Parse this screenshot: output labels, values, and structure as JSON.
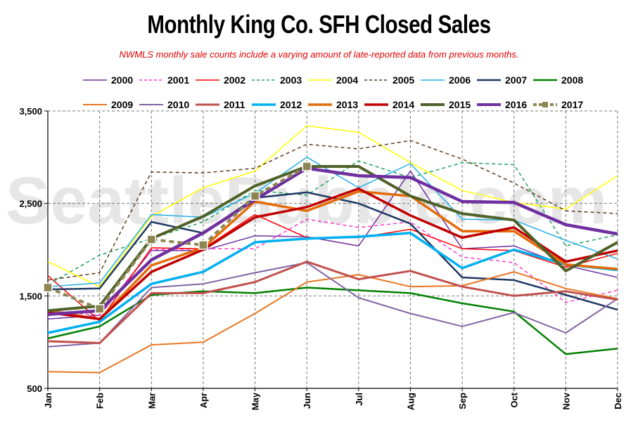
{
  "title": "Monthly King Co. SFH Closed Sales",
  "subtitle": "NWMLS monthly sale counts include a varying amount of late-reported  data  from previous months.",
  "watermark": "SeattleBubble.com",
  "chart_data": {
    "type": "line",
    "title": "Monthly King Co. SFH Closed Sales",
    "xlabel": "",
    "ylabel": "",
    "categories": [
      "Jan",
      "Feb",
      "Mar",
      "Apr",
      "May",
      "Jun",
      "Jul",
      "Aug",
      "Sep",
      "Oct",
      "Nov",
      "Dec"
    ],
    "ylim": [
      500,
      3500
    ],
    "yticks": [
      500,
      1500,
      2500,
      3500
    ],
    "ytick_labels": [
      "500",
      "1,500",
      "2,500",
      "3,500"
    ],
    "grid": "dashed",
    "legend": "top",
    "series": [
      {
        "name": "2000",
        "color": "#7030a0",
        "dash": "solid",
        "width": 1.5,
        "values": [
          1250,
          1290,
          1990,
          1990,
          2150,
          2140,
          2040,
          2850,
          2010,
          2040,
          1830,
          1700
        ]
      },
      {
        "name": "2001",
        "color": "#ff33cc",
        "dash": "dashed",
        "width": 1.5,
        "values": [
          1340,
          1290,
          2000,
          2010,
          2010,
          2330,
          2240,
          2300,
          1920,
          1860,
          1430,
          1560
        ]
      },
      {
        "name": "2002",
        "color": "#ff0000",
        "dash": "solid",
        "width": 1.5,
        "values": [
          1720,
          1230,
          2020,
          2010,
          2380,
          2130,
          2130,
          2220,
          2010,
          1990,
          1810,
          1960
        ]
      },
      {
        "name": "2003",
        "color": "#1aa05a",
        "dash": "dashed",
        "width": 1.5,
        "values": [
          1620,
          1940,
          2120,
          2300,
          2640,
          2590,
          2960,
          2780,
          2940,
          2920,
          2040,
          2160
        ]
      },
      {
        "name": "2004",
        "color": "#ffff00",
        "dash": "solid",
        "width": 1.5,
        "values": [
          1870,
          1600,
          2360,
          2670,
          2850,
          3340,
          3270,
          2940,
          2640,
          2510,
          2440,
          2800
        ]
      },
      {
        "name": "2005",
        "color": "#5a3a1a",
        "dash": "dashed",
        "width": 1.5,
        "values": [
          1670,
          1750,
          2840,
          2830,
          2880,
          3140,
          3090,
          3180,
          2980,
          2720,
          2420,
          2390
        ]
      },
      {
        "name": "2006",
        "color": "#22b0e8",
        "dash": "solid",
        "width": 1.5,
        "values": [
          1600,
          1640,
          2380,
          2350,
          2610,
          3000,
          2670,
          2930,
          2330,
          2320,
          2100,
          1900
        ]
      },
      {
        "name": "2007",
        "color": "#1f3864",
        "dash": "solid",
        "width": 2.5,
        "values": [
          1570,
          1580,
          2300,
          2180,
          2560,
          2620,
          2500,
          2280,
          1700,
          1670,
          1510,
          1350
        ]
      },
      {
        "name": "2008",
        "color": "#008000",
        "dash": "solid",
        "width": 2.5,
        "values": [
          1040,
          1170,
          1510,
          1550,
          1530,
          1590,
          1560,
          1530,
          1420,
          1330,
          870,
          930
        ]
      },
      {
        "name": "2009",
        "color": "#e87722",
        "dash": "solid",
        "width": 2.0,
        "values": [
          680,
          670,
          970,
          1000,
          1310,
          1650,
          1730,
          1600,
          1610,
          1760,
          1580,
          1470
        ]
      },
      {
        "name": "2010",
        "color": "#8064a2",
        "dash": "solid",
        "width": 2.0,
        "values": [
          950,
          990,
          1590,
          1630,
          1750,
          1860,
          1480,
          1310,
          1170,
          1320,
          1100,
          1470
        ]
      },
      {
        "name": "2011",
        "color": "#c0504d",
        "dash": "solid",
        "width": 3.0,
        "values": [
          1010,
          990,
          1530,
          1530,
          1650,
          1870,
          1680,
          1770,
          1600,
          1500,
          1550,
          1460
        ]
      },
      {
        "name": "2012",
        "color": "#00b0f0",
        "dash": "solid",
        "width": 3.5,
        "values": [
          1100,
          1220,
          1630,
          1760,
          2080,
          2120,
          2140,
          2180,
          1800,
          2000,
          1840,
          1780
        ]
      },
      {
        "name": "2013",
        "color": "#e36c09",
        "dash": "solid",
        "width": 3.5,
        "values": [
          1340,
          1250,
          1830,
          2020,
          2520,
          2420,
          2630,
          2580,
          2200,
          2200,
          1840,
          1790
        ]
      },
      {
        "name": "2014",
        "color": "#c00000",
        "dash": "solid",
        "width": 3.5,
        "values": [
          1320,
          1250,
          1760,
          2000,
          2350,
          2460,
          2660,
          2370,
          2130,
          2240,
          1870,
          1990
        ]
      },
      {
        "name": "2015",
        "color": "#4f6228",
        "dash": "solid",
        "width": 4.0,
        "values": [
          1340,
          1390,
          2120,
          2360,
          2690,
          2900,
          2900,
          2580,
          2390,
          2320,
          1770,
          2080
        ]
      },
      {
        "name": "2016",
        "color": "#7030a0",
        "dash": "solid",
        "width": 4.5,
        "values": [
          1300,
          1340,
          1890,
          2180,
          2540,
          2880,
          2800,
          2780,
          2520,
          2510,
          2270,
          2170
        ]
      },
      {
        "name": "2017",
        "color": "#8d8653",
        "dash": "dashed",
        "width": 4.0,
        "markers": true,
        "values": [
          1590,
          1360,
          2110,
          2050,
          2580,
          2900,
          null,
          null,
          null,
          null,
          null,
          null
        ]
      }
    ]
  }
}
